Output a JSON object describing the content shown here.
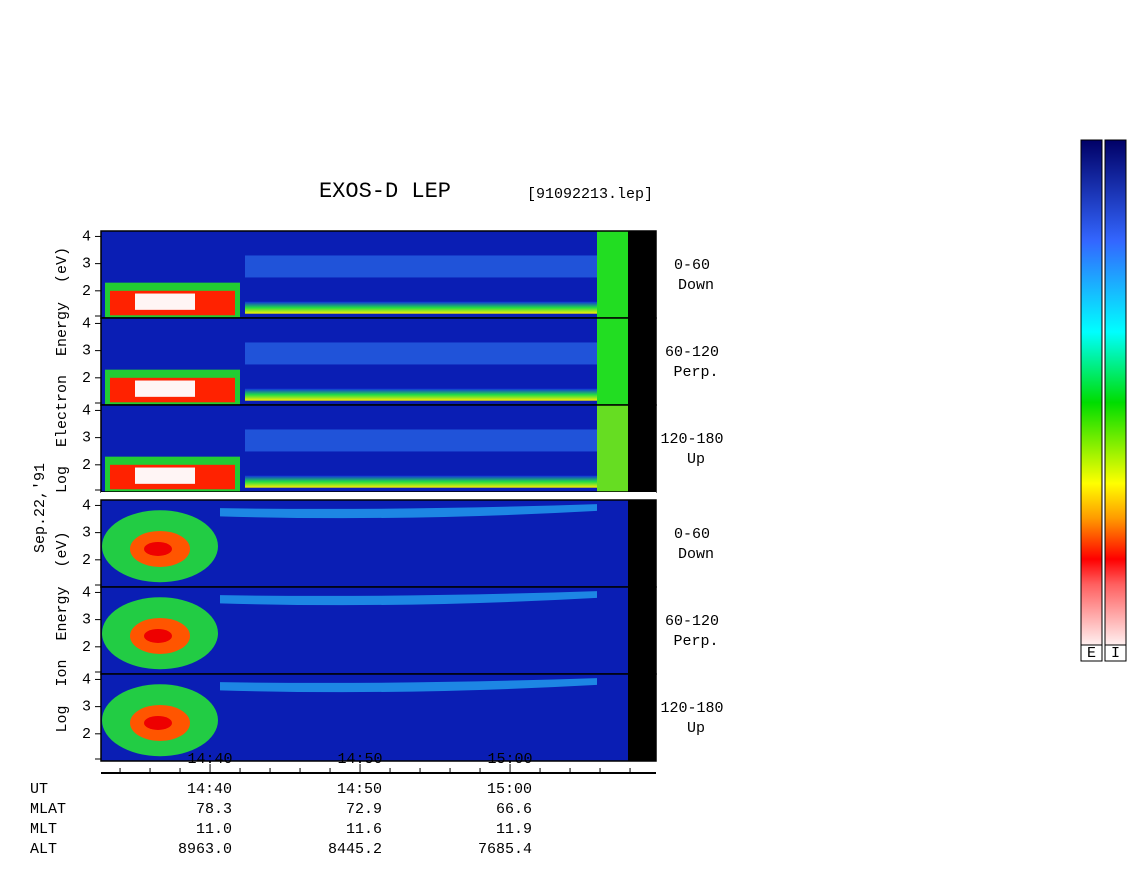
{
  "chart_data": {
    "type": "spectrogram",
    "title": "EXOS-D LEP",
    "file": "[91092213.lep]",
    "date": "Sep.22,'91",
    "ylim": [
      1,
      4.2
    ],
    "yticks": [
      2,
      3,
      4
    ],
    "xlim": [
      872.73,
      909.73
    ],
    "xticks": [
      {
        "value": 880,
        "label": "14:40"
      },
      {
        "value": 890,
        "label": "14:50"
      },
      {
        "value": 900,
        "label": "15:00"
      }
    ],
    "minor_xticks": [
      874,
      876,
      878,
      882,
      884,
      886,
      888,
      892,
      894,
      896,
      898,
      902,
      904,
      906,
      908
    ],
    "groups": [
      {
        "species": "Electron",
        "axis_label": "Log Electron Energy (eV)",
        "panels": [
          {
            "pitch": "0-60",
            "direction": "Down"
          },
          {
            "pitch": "60-120",
            "direction": "Perp."
          },
          {
            "pitch": "120-180",
            "direction": "Up"
          }
        ]
      },
      {
        "species": "Ion",
        "axis_label": "Log Ion Energy (eV)",
        "panels": [
          {
            "pitch": "0-60",
            "direction": "Down"
          },
          {
            "pitch": "60-120",
            "direction": "Perp."
          },
          {
            "pitch": "120-180",
            "direction": "Up"
          }
        ]
      }
    ],
    "ephemeris": [
      {
        "name": "UT",
        "values": [
          "14:40",
          "14:50",
          "15:00"
        ]
      },
      {
        "name": "MLAT",
        "values": [
          "78.3",
          "72.9",
          "66.6"
        ]
      },
      {
        "name": "MLT",
        "values": [
          "11.0",
          "11.6",
          "11.9"
        ]
      },
      {
        "name": "ALT",
        "values": [
          "8963.0",
          "8445.2",
          "7685.4"
        ]
      }
    ],
    "colorbars": [
      "E",
      "I"
    ]
  }
}
